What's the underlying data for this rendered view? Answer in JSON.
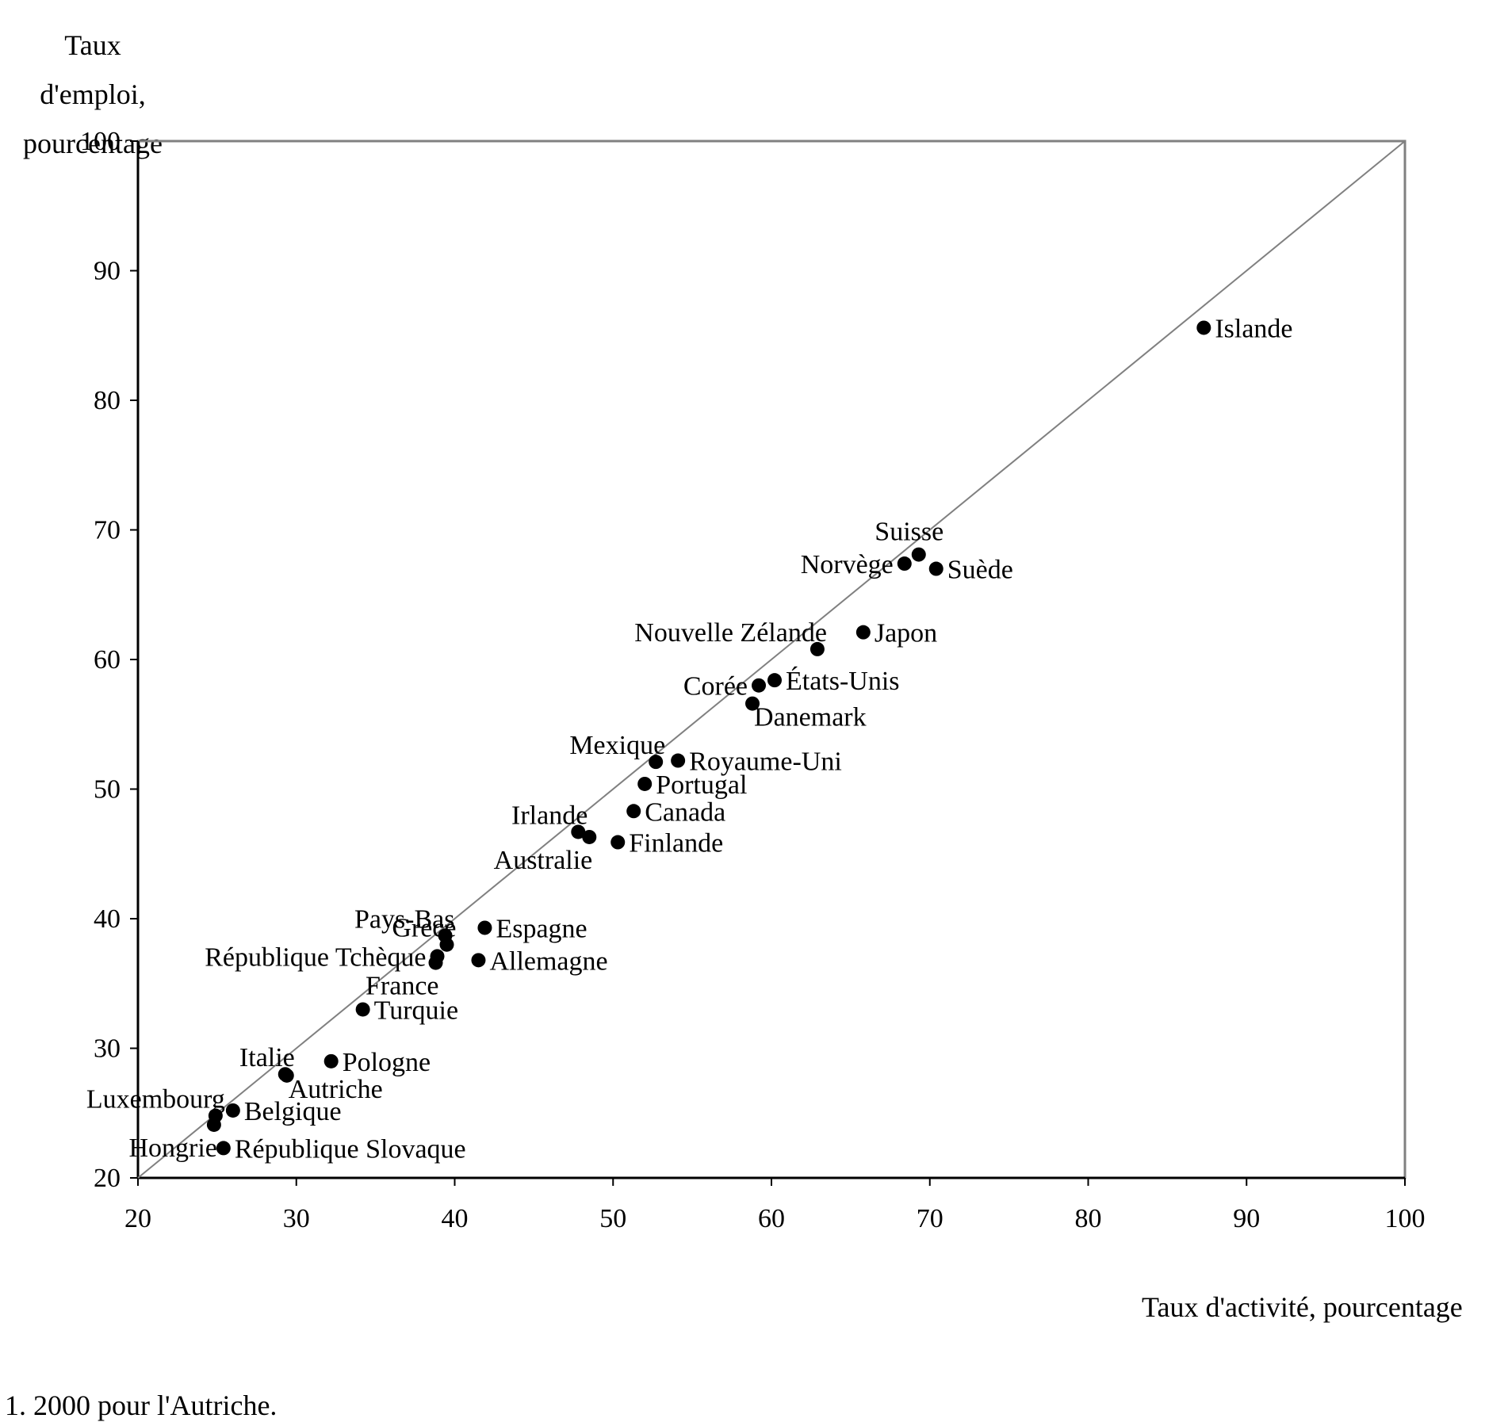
{
  "chart_data": {
    "type": "scatter",
    "xlabel": "Taux d'activité, pourcentage",
    "ylabel_line1": "Taux d'emploi,",
    "ylabel_line2": "pourcentage",
    "footnote": "1. 2000 pour l'Autriche.",
    "xlim": [
      20,
      100
    ],
    "ylim": [
      20,
      100
    ],
    "xticks": [
      20,
      30,
      40,
      50,
      60,
      70,
      80,
      90,
      100
    ],
    "yticks": [
      20,
      30,
      40,
      50,
      60,
      70,
      80,
      90,
      100
    ],
    "grid": false,
    "reference_line": "y = x",
    "marker_color": "#000000",
    "points": [
      {
        "label": "Islande",
        "x": 87.3,
        "y": 85.6,
        "anchor": "right"
      },
      {
        "label": "Suisse",
        "x": 69.3,
        "y": 68.1,
        "anchor": "above"
      },
      {
        "label": "Norvège",
        "x": 68.4,
        "y": 67.4,
        "anchor": "left"
      },
      {
        "label": "Suède",
        "x": 70.4,
        "y": 67.0,
        "anchor": "right"
      },
      {
        "label": "Japon",
        "x": 65.8,
        "y": 62.1,
        "anchor": "right"
      },
      {
        "label": "Nouvelle Zélande",
        "x": 62.9,
        "y": 60.8,
        "anchor": "upper-left"
      },
      {
        "label": "Corée",
        "x": 59.2,
        "y": 58.0,
        "anchor": "left"
      },
      {
        "label": "États-Unis",
        "x": 60.2,
        "y": 58.4,
        "anchor": "right"
      },
      {
        "label": "Danemark",
        "x": 58.8,
        "y": 56.6,
        "anchor": "lower-right"
      },
      {
        "label": "Mexique",
        "x": 52.7,
        "y": 52.1,
        "anchor": "upper-left"
      },
      {
        "label": "Royaume-Uni",
        "x": 54.1,
        "y": 52.2,
        "anchor": "right"
      },
      {
        "label": "Portugal",
        "x": 52.0,
        "y": 50.4,
        "anchor": "right"
      },
      {
        "label": "Canada",
        "x": 51.3,
        "y": 48.3,
        "anchor": "right"
      },
      {
        "label": "Irlande",
        "x": 47.8,
        "y": 46.7,
        "anchor": "upper-left"
      },
      {
        "label": "Australie",
        "x": 48.5,
        "y": 46.3,
        "anchor": "lower-left"
      },
      {
        "label": "Finlande",
        "x": 50.3,
        "y": 45.9,
        "anchor": "right"
      },
      {
        "label": "Pays-Bas",
        "x": 39.4,
        "y": 38.7,
        "anchor": "upper-left"
      },
      {
        "label": "Grèce",
        "x": 39.5,
        "y": 38.0,
        "anchor": "upper-left"
      },
      {
        "label": "République Tchèque",
        "x": 38.9,
        "y": 37.1,
        "anchor": "left"
      },
      {
        "label": "France",
        "x": 38.8,
        "y": 36.6,
        "anchor": "lower-left"
      },
      {
        "label": "Espagne",
        "x": 41.9,
        "y": 39.3,
        "anchor": "right"
      },
      {
        "label": "Allemagne",
        "x": 41.5,
        "y": 36.8,
        "anchor": "right"
      },
      {
        "label": "Turquie",
        "x": 34.2,
        "y": 33.0,
        "anchor": "right"
      },
      {
        "label": "Pologne",
        "x": 32.2,
        "y": 29.0,
        "anchor": "right"
      },
      {
        "label": "Italie",
        "x": 29.3,
        "y": 28.0,
        "anchor": "upper-left"
      },
      {
        "label": "Autriche",
        "x": 29.4,
        "y": 27.9,
        "anchor": "lower-right"
      },
      {
        "label": "Luxembourg",
        "x": 24.9,
        "y": 24.8,
        "anchor": "upper-left"
      },
      {
        "label": "Hongrie",
        "x": 24.8,
        "y": 24.1,
        "anchor": "lower-left"
      },
      {
        "label": "Belgique",
        "x": 26.0,
        "y": 25.2,
        "anchor": "right"
      },
      {
        "label": "République Slovaque",
        "x": 25.4,
        "y": 22.3,
        "anchor": "right"
      }
    ]
  }
}
